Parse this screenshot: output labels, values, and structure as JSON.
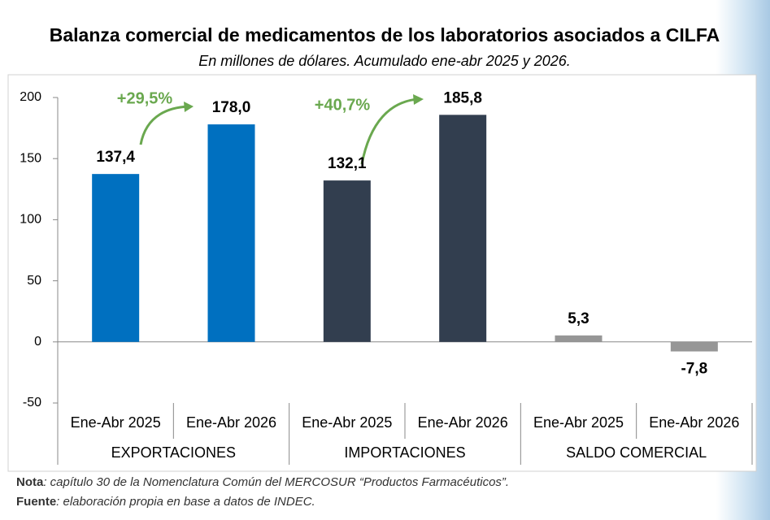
{
  "chart_data": {
    "type": "bar",
    "title": "Balanza comercial de medicamentos de los laboratorios asociados a CILFA",
    "subtitle": "En millones de dólares. Acumulado ene-abr 2025 y 2026.",
    "categories": [
      "Ene-Abr 2025",
      "Ene-Abr 2026",
      "Ene-Abr 2025",
      "Ene-Abr 2026",
      "Ene-Abr 2025",
      "Ene-Abr 2026"
    ],
    "groups": [
      "EXPORTACIONES",
      "IMPORTACIONES",
      "SALDO COMERCIAL"
    ],
    "values": [
      137.4,
      178.0,
      132.1,
      185.8,
      5.3,
      -7.8
    ],
    "value_labels": [
      "137,4",
      "178,0",
      "132,1",
      "185,8",
      "5,3",
      "-7,8"
    ],
    "colors": [
      "#0070c0",
      "#0070c0",
      "#323e4f",
      "#323e4f",
      "#969696",
      "#969696"
    ],
    "ylim": [
      -50,
      200
    ],
    "yticks": [
      -50,
      0,
      50,
      100,
      150,
      200
    ],
    "annotations": [
      "+29,5%",
      "+40,7%"
    ],
    "note": {
      "label": "Nota",
      "text": ": capítulo 30 de la Nomenclatura Común del MERCOSUR “Productos Farmacéuticos”."
    },
    "source": {
      "label": "Fuente",
      "text": ": elaboración propia en base a datos de INDEC."
    }
  }
}
